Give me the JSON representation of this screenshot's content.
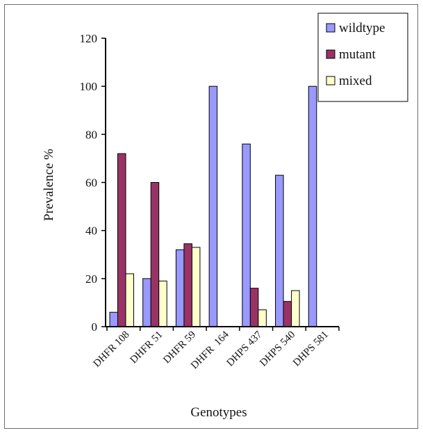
{
  "chart_data": {
    "type": "bar",
    "title": "",
    "xlabel": "Genotypes",
    "ylabel": "Prevalence %",
    "ylim": [
      0,
      120
    ],
    "yticks": [
      0,
      20,
      40,
      60,
      80,
      100,
      120
    ],
    "categories": [
      "DHFR 108",
      "DHFR 51",
      "DHFR 59",
      "DHFR  164",
      "DHPS 437",
      "DHPS 540",
      "DHPS 581"
    ],
    "series": [
      {
        "name": "wildtype",
        "color": "#9999ff",
        "values": [
          6,
          20,
          32,
          100,
          76,
          63,
          100
        ]
      },
      {
        "name": "mutant",
        "color": "#993366",
        "values": [
          72,
          60,
          34.5,
          0,
          16,
          10.5,
          0
        ]
      },
      {
        "name": "mixed",
        "color": "#ffffcc",
        "values": [
          22,
          19,
          33,
          0,
          7,
          15,
          0
        ]
      }
    ],
    "grid": false,
    "legend_position": "top-right"
  }
}
